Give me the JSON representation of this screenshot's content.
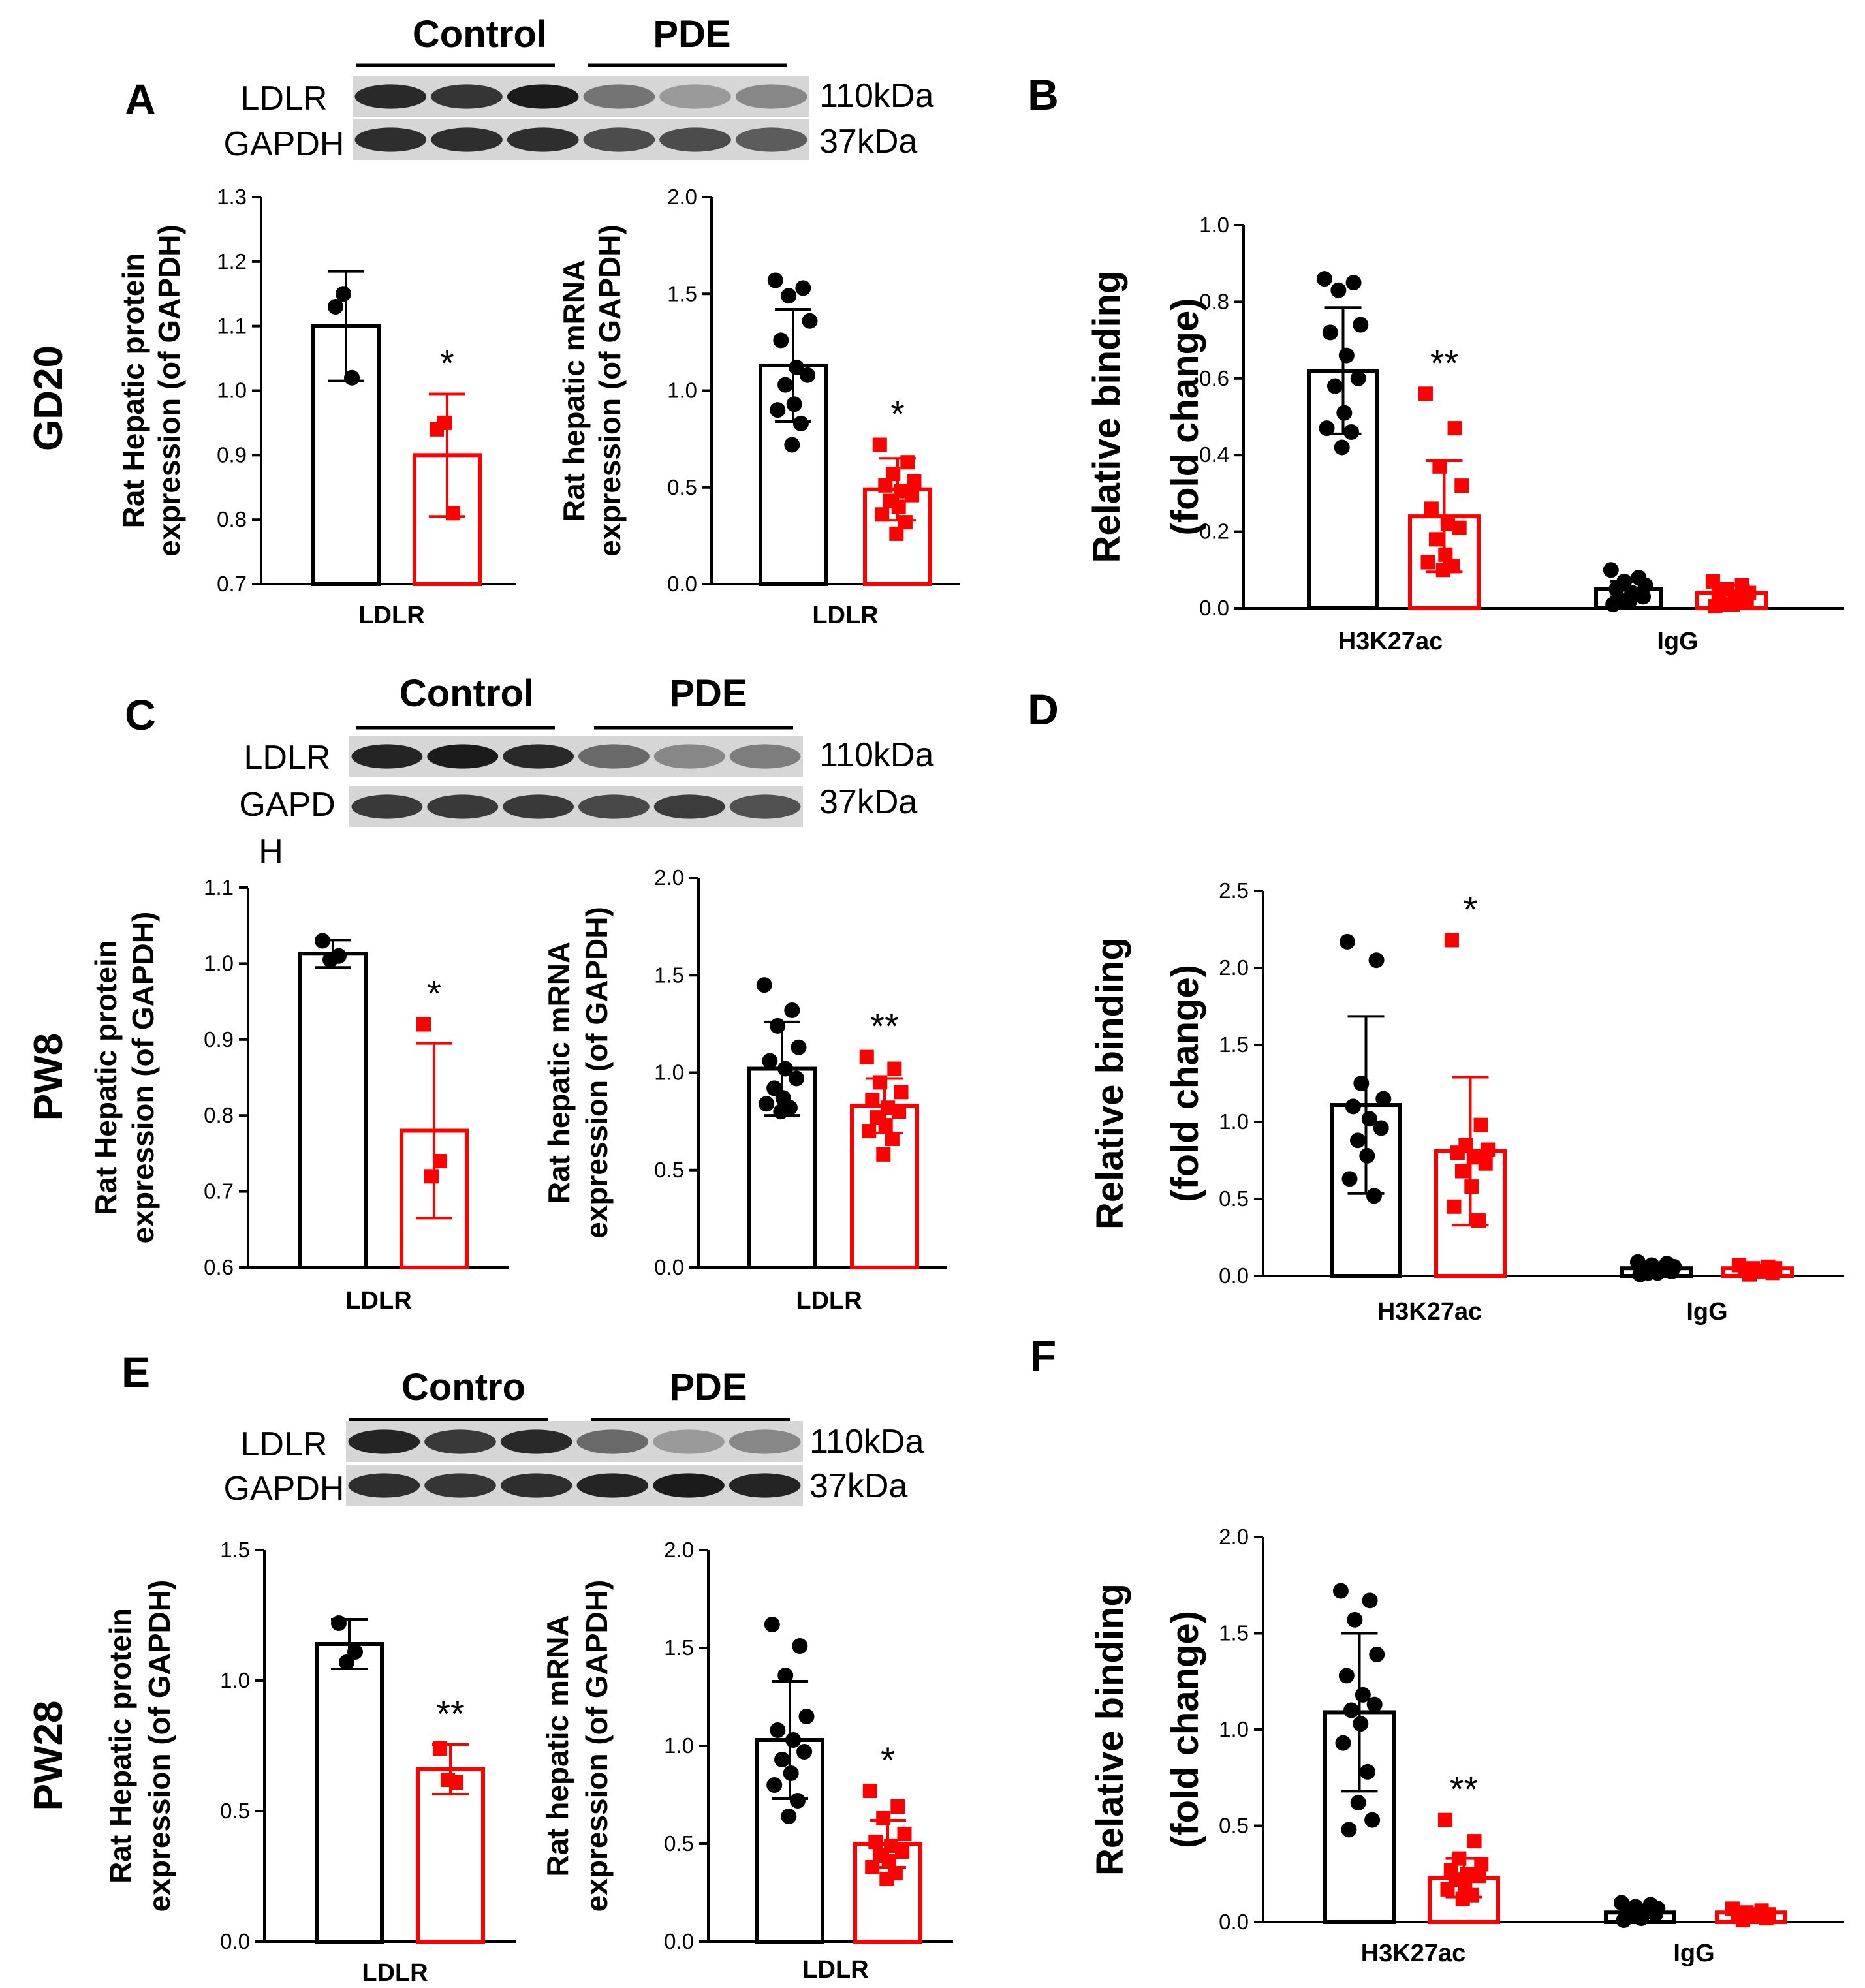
{
  "figure": {
    "colors": {
      "control": "#000000",
      "pde": "#ff0000"
    },
    "blots": [
      {
        "panel": "A",
        "groups": [
          "Control",
          "PDE"
        ],
        "rows": [
          "LDLR",
          "GAPDH"
        ],
        "sizes": [
          "110kDa",
          "37kDa"
        ]
      },
      {
        "panel": "C",
        "groups": [
          "Control",
          "PDE"
        ],
        "rows": [
          "LDLR",
          "GAPD"
        ],
        "extra_label": "H",
        "sizes": [
          "110kDa",
          "37kDa"
        ]
      },
      {
        "panel": "E",
        "groups": [
          "Contro",
          "PDE"
        ],
        "rows": [
          "LDLR",
          "GAPDH"
        ],
        "sizes": [
          "110kDa",
          "37kDa"
        ]
      }
    ],
    "row_labels": [
      "GD20",
      "PW8",
      "PW28"
    ],
    "chip_panel_letters": [
      "B",
      "D",
      "F"
    ]
  },
  "chart_data": [
    {
      "id": "A_protein",
      "panel": "A",
      "type": "bar",
      "ylabel": [
        "Rat Hepatic protein",
        "expression (of GAPDH)"
      ],
      "ylim": [
        0.7,
        1.3
      ],
      "yticks": [
        0.7,
        0.8,
        0.9,
        1.0,
        1.1,
        1.2,
        1.3
      ],
      "ytick_labels": [
        "0.7",
        "0.8",
        "0.9",
        "1.0",
        "1.1",
        "1.2",
        "1.3"
      ],
      "categories": [
        "LDLR"
      ],
      "series": [
        {
          "name": "Control",
          "values": [
            1.1
          ],
          "sd": [
            0.085
          ],
          "points": [
            [
              1.13,
              1.02,
              1.15
            ]
          ]
        },
        {
          "name": "PDE",
          "values": [
            0.9
          ],
          "sd": [
            0.095
          ],
          "points": [
            [
              0.94,
              0.81,
              0.95
            ]
          ]
        }
      ],
      "significance": [
        [
          "",
          "*"
        ]
      ]
    },
    {
      "id": "A_mrna",
      "panel": "A",
      "type": "bar",
      "ylabel": [
        "Rat hepatic  mRNA",
        "expression (of GAPDH)"
      ],
      "ylim": [
        0.0,
        2.0
      ],
      "yticks": [
        0,
        0.5,
        1.0,
        1.5,
        2.0
      ],
      "ytick_labels": [
        "0.0",
        "0.5",
        "1.0",
        "1.5",
        "2.0"
      ],
      "categories": [
        "LDLR"
      ],
      "series": [
        {
          "name": "Control",
          "values": [
            1.13
          ],
          "sd": [
            0.29
          ],
          "points": [
            [
              1.57,
              1.53,
              1.49,
              1.36,
              1.26,
              1.12,
              1.08,
              1.03,
              0.93,
              0.9,
              0.83,
              0.72
            ]
          ]
        },
        {
          "name": "PDE",
          "values": [
            0.49
          ],
          "sd": [
            0.16
          ],
          "points": [
            [
              0.72,
              0.63,
              0.57,
              0.53,
              0.51,
              0.48,
              0.46,
              0.43,
              0.4,
              0.36,
              0.32,
              0.26
            ]
          ]
        }
      ],
      "significance": [
        [
          "",
          "*"
        ]
      ]
    },
    {
      "id": "B_chip",
      "panel": "B",
      "type": "bar",
      "ylabel": [
        "Relative binding",
        "(fold change)"
      ],
      "ylim": [
        0.0,
        1.0
      ],
      "yticks": [
        0,
        0.2,
        0.4,
        0.6,
        0.8,
        1.0
      ],
      "ytick_labels": [
        "0.0",
        "0.2",
        "0.4",
        "0.6",
        "0.8",
        "1.0"
      ],
      "categories": [
        "H3K27ac",
        "IgG"
      ],
      "series": [
        {
          "name": "Control",
          "values": [
            0.62,
            0.05
          ],
          "sd": [
            0.165,
            0.02
          ],
          "points": [
            [
              0.86,
              0.85,
              0.83,
              0.74,
              0.72,
              0.66,
              0.6,
              0.58,
              0.51,
              0.47,
              0.46,
              0.42
            ],
            [
              0.1,
              0.08,
              0.07,
              0.06,
              0.05,
              0.04,
              0.03,
              0.02,
              0.02,
              0.01
            ]
          ]
        },
        {
          "name": "PDE",
          "values": [
            0.24,
            0.04
          ],
          "sd": [
            0.145,
            0.02
          ],
          "points": [
            [
              0.56,
              0.47,
              0.37,
              0.32,
              0.26,
              0.22,
              0.21,
              0.18,
              0.14,
              0.12,
              0.11,
              0.1
            ],
            [
              0.07,
              0.06,
              0.05,
              0.04,
              0.04,
              0.03,
              0.02,
              0.01,
              0.01,
              0.005
            ]
          ]
        }
      ],
      "significance": [
        [
          "",
          "**"
        ],
        [
          "",
          ""
        ]
      ]
    },
    {
      "id": "C_protein",
      "panel": "C",
      "type": "bar",
      "ylabel": [
        "Rat Hepatic protein",
        "expression (of GAPDH)"
      ],
      "ylim": [
        0.6,
        1.1
      ],
      "yticks": [
        0.6,
        0.7,
        0.8,
        0.9,
        1.0,
        1.1
      ],
      "ytick_labels": [
        "0.6",
        "0.7",
        "0.8",
        "0.9",
        "1.0",
        "1.1"
      ],
      "categories": [
        "LDLR"
      ],
      "series": [
        {
          "name": "Control",
          "values": [
            1.013
          ],
          "sd": [
            0.018
          ],
          "points": [
            [
              1.03,
              1.01,
              1.005
            ]
          ]
        },
        {
          "name": "PDE",
          "values": [
            0.78
          ],
          "sd": [
            0.115
          ],
          "points": [
            [
              0.92,
              0.74,
              0.72
            ]
          ]
        }
      ],
      "significance": [
        [
          "",
          "*"
        ]
      ]
    },
    {
      "id": "C_mrna",
      "panel": "C",
      "type": "bar",
      "ylabel": [
        "Rat hepatic  mRNA",
        "expression (of GAPDH)"
      ],
      "ylim": [
        0.0,
        2.0
      ],
      "yticks": [
        0,
        0.5,
        1.0,
        1.5,
        2.0
      ],
      "ytick_labels": [
        "0.0",
        "0.5",
        "1.0",
        "1.5",
        "2.0"
      ],
      "categories": [
        "LDLR"
      ],
      "series": [
        {
          "name": "Control",
          "values": [
            1.02
          ],
          "sd": [
            0.24
          ],
          "points": [
            [
              1.45,
              1.32,
              1.24,
              1.13,
              1.06,
              1.02,
              0.97,
              0.92,
              0.87,
              0.84,
              0.82,
              0.8
            ]
          ]
        },
        {
          "name": "PDE",
          "values": [
            0.83
          ],
          "sd": [
            0.14
          ],
          "points": [
            [
              1.08,
              1.02,
              0.95,
              0.9,
              0.86,
              0.82,
              0.8,
              0.77,
              0.73,
              0.7,
              0.66,
              0.58
            ]
          ]
        }
      ],
      "significance": [
        [
          "",
          "**"
        ]
      ]
    },
    {
      "id": "D_chip",
      "panel": "D",
      "type": "bar",
      "ylabel": [
        "Relative binding",
        "(fold change)"
      ],
      "ylim": [
        0.0,
        2.5
      ],
      "yticks": [
        0,
        0.5,
        1.0,
        1.5,
        2.0,
        2.5
      ],
      "ytick_labels": [
        "0.0",
        "0.5",
        "1.0",
        "1.5",
        "2.0",
        "2.5"
      ],
      "categories": [
        "H3K27ac",
        "IgG"
      ],
      "series": [
        {
          "name": "Control",
          "values": [
            1.11,
            0.05
          ],
          "sd": [
            0.575,
            0.02
          ],
          "points": [
            [
              2.17,
              2.05,
              1.25,
              1.15,
              1.1,
              1.02,
              0.96,
              0.88,
              0.78,
              0.63,
              0.52
            ],
            [
              0.09,
              0.08,
              0.07,
              0.06,
              0.05,
              0.04,
              0.03,
              0.02,
              0.02,
              0.01
            ]
          ]
        },
        {
          "name": "PDE",
          "values": [
            0.81,
            0.05
          ],
          "sd": [
            0.48,
            0.02
          ],
          "points": [
            [
              2.18,
              0.98,
              0.85,
              0.82,
              0.8,
              0.77,
              0.73,
              0.68,
              0.58,
              0.45,
              0.36
            ],
            [
              0.07,
              0.06,
              0.05,
              0.05,
              0.04,
              0.03,
              0.02,
              0.01
            ]
          ]
        }
      ],
      "significance": [
        [
          "",
          "*"
        ],
        [
          "",
          ""
        ]
      ]
    },
    {
      "id": "E_protein",
      "panel": "E",
      "type": "bar",
      "ylabel": [
        "Rat Hepatic protein",
        "expression (of GAPDH)"
      ],
      "ylim": [
        0.0,
        1.5
      ],
      "yticks": [
        0,
        0.5,
        1.0,
        1.5
      ],
      "ytick_labels": [
        "0.0",
        "0.5",
        "1.0",
        "1.5"
      ],
      "categories": [
        "LDLR"
      ],
      "series": [
        {
          "name": "Control",
          "values": [
            1.14
          ],
          "sd": [
            0.095
          ],
          "points": [
            [
              1.22,
              1.11,
              1.07
            ]
          ]
        },
        {
          "name": "PDE",
          "values": [
            0.66
          ],
          "sd": [
            0.095
          ],
          "points": [
            [
              0.74,
              0.61,
              0.62
            ]
          ]
        }
      ],
      "significance": [
        [
          "",
          "**"
        ]
      ]
    },
    {
      "id": "E_mrna",
      "panel": "E",
      "type": "bar",
      "ylabel": [
        "Rat hepatic  mRNA",
        "expression (of GAPDH)"
      ],
      "ylim": [
        0.0,
        2.0
      ],
      "yticks": [
        0,
        0.5,
        1.0,
        1.5,
        2.0
      ],
      "ytick_labels": [
        "0.0",
        "0.5",
        "1.0",
        "1.5",
        "2.0"
      ],
      "categories": [
        "LDLR"
      ],
      "series": [
        {
          "name": "Control",
          "values": [
            1.03
          ],
          "sd": [
            0.3
          ],
          "points": [
            [
              1.62,
              1.51,
              1.36,
              1.15,
              1.08,
              1.03,
              0.97,
              0.93,
              0.86,
              0.8,
              0.72,
              0.64
            ]
          ]
        },
        {
          "name": "PDE",
          "values": [
            0.5
          ],
          "sd": [
            0.12
          ],
          "points": [
            [
              0.77,
              0.69,
              0.63,
              0.55,
              0.51,
              0.49,
              0.46,
              0.44,
              0.41,
              0.38,
              0.35,
              0.32
            ]
          ]
        }
      ],
      "significance": [
        [
          "",
          "*"
        ]
      ]
    },
    {
      "id": "F_chip",
      "panel": "F",
      "type": "bar",
      "ylabel": [
        "Relative binding",
        "(fold change)"
      ],
      "ylim": [
        0.0,
        2.0
      ],
      "yticks": [
        0,
        0.5,
        1.0,
        1.5,
        2.0
      ],
      "ytick_labels": [
        "0.0",
        "0.5",
        "1.0",
        "1.5",
        "2.0"
      ],
      "categories": [
        "H3K27ac",
        "IgG"
      ],
      "series": [
        {
          "name": "Control",
          "values": [
            1.09,
            0.05
          ],
          "sd": [
            0.41,
            0.02
          ],
          "points": [
            [
              1.72,
              1.67,
              1.57,
              1.39,
              1.28,
              1.18,
              1.13,
              1.1,
              1.03,
              0.93,
              0.78,
              0.62,
              0.53,
              0.48
            ],
            [
              0.1,
              0.09,
              0.08,
              0.07,
              0.06,
              0.05,
              0.04,
              0.03,
              0.02,
              0.01
            ]
          ]
        },
        {
          "name": "PDE",
          "values": [
            0.23,
            0.05
          ],
          "sd": [
            0.1,
            0.02
          ],
          "points": [
            [
              0.53,
              0.42,
              0.33,
              0.3,
              0.27,
              0.25,
              0.24,
              0.22,
              0.19,
              0.17,
              0.14,
              0.12
            ],
            [
              0.07,
              0.06,
              0.05,
              0.04,
              0.04,
              0.03,
              0.02,
              0.01
            ]
          ]
        }
      ],
      "significance": [
        [
          "",
          "**"
        ],
        [
          "",
          ""
        ]
      ]
    }
  ]
}
